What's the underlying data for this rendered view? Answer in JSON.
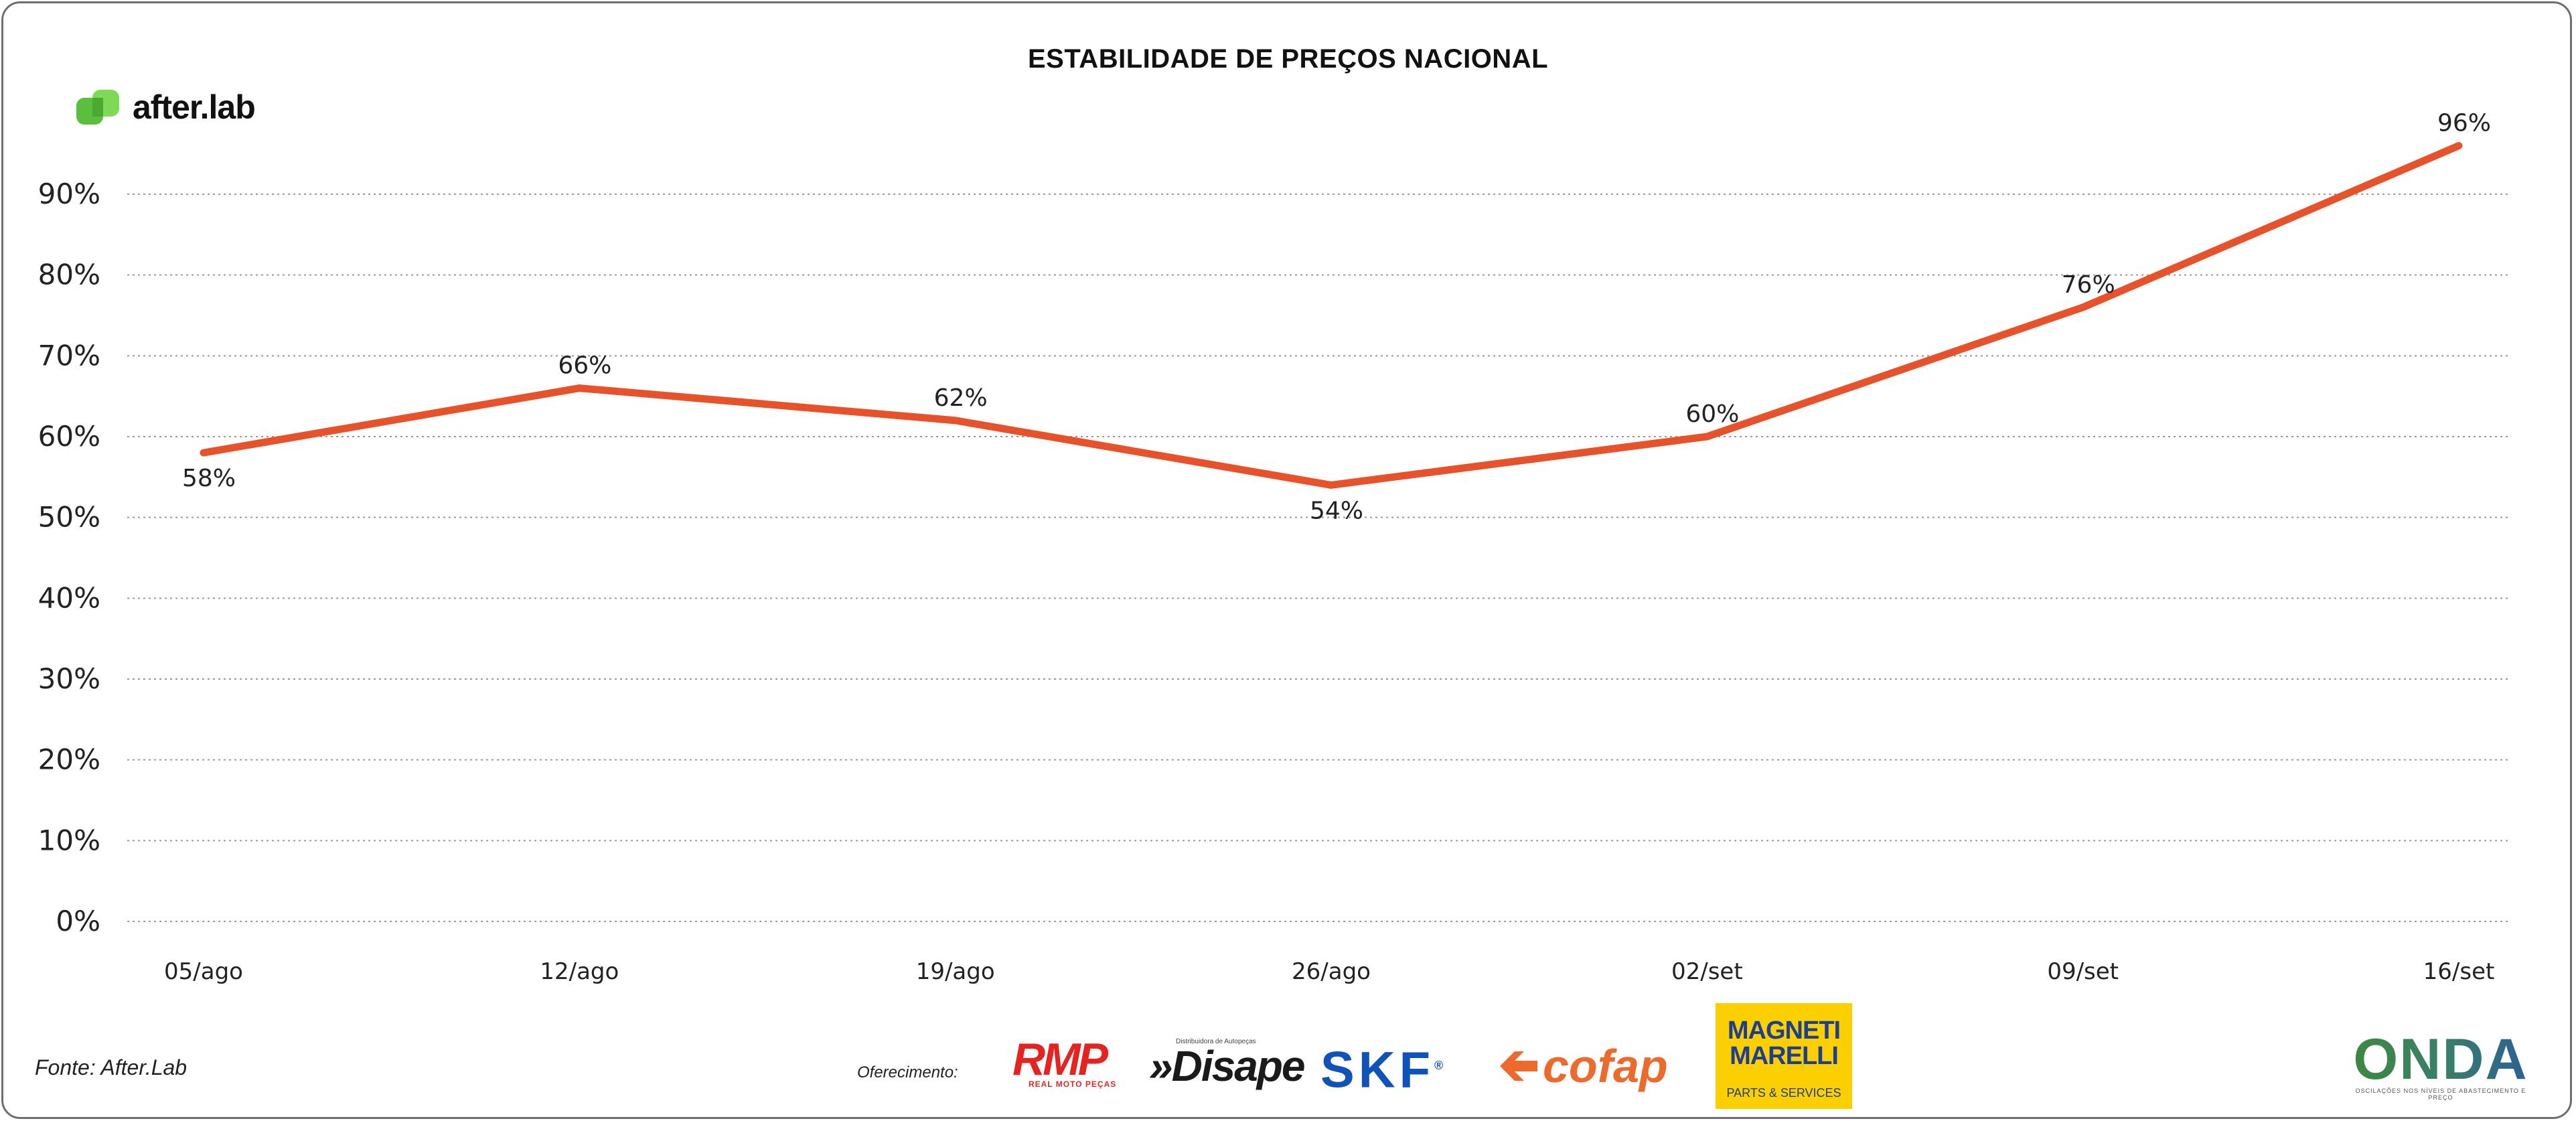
{
  "brand": {
    "name": "after.lab",
    "icon": "after-lab-logo-icon",
    "color": "#5bbf3e"
  },
  "chart_data": {
    "type": "line",
    "title": "ESTABILIDADE DE PREÇOS NACIONAL",
    "xlabel": "",
    "ylabel": "",
    "categories": [
      "05/ago",
      "12/ago",
      "19/ago",
      "26/ago",
      "02/set",
      "09/set",
      "16/set"
    ],
    "series": [
      {
        "values": [
          58,
          66,
          62,
          54,
          60,
          76,
          96
        ],
        "color": "#e8522a"
      }
    ],
    "data_labels": [
      "58%",
      "66%",
      "62%",
      "54%",
      "60%",
      "76%",
      "96%"
    ],
    "y_ticks": [
      "0%",
      "10%",
      "20%",
      "30%",
      "40%",
      "50%",
      "60%",
      "70%",
      "80%",
      "90%"
    ],
    "ylim": [
      0,
      90
    ],
    "grid": "horizontal dotted",
    "legend": "none"
  },
  "footer": {
    "source": "Fonte: After.Lab",
    "offer_label": "Oferecimento:"
  },
  "sponsors": {
    "rmp": {
      "name": "RMP",
      "tagline": "REAL MOTO PEÇAS",
      "color": "#e52421"
    },
    "disape": {
      "name": "»Disape",
      "tagline": "Distribuidora de Autopeças"
    },
    "skf": {
      "name": "SKF",
      "mark": "®",
      "color": "#0f52ba"
    },
    "cofap": {
      "name": "cofap",
      "color": "#ec6a2c"
    },
    "magneti_marelli": {
      "line1": "MAGNETI",
      "line2": "MARELLI",
      "line3": "PARTS & SERVICES",
      "bg": "#fcd000"
    },
    "onda": {
      "name": "ONDA",
      "tagline": "OSCILAÇÕES NOS NÍVEIS DE ABASTECIMENTO E PREÇO"
    }
  }
}
